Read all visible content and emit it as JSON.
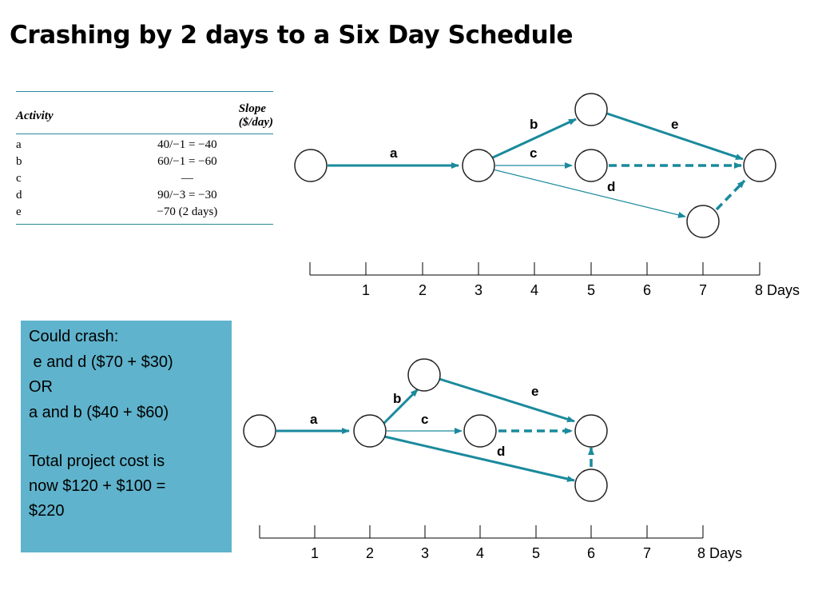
{
  "title": "Crashing by 2 days to a Six Day Schedule",
  "table": {
    "headers": {
      "activity": "Activity",
      "slope": "Slope ($/day)"
    },
    "rows": [
      {
        "activity": "a",
        "slope": "40/−1 = −40"
      },
      {
        "activity": "b",
        "slope": "60/−1 = −60"
      },
      {
        "activity": "c",
        "slope": "—"
      },
      {
        "activity": "d",
        "slope": "90/−3 = −30"
      },
      {
        "activity": "e",
        "slope": "−70 (2 days)"
      }
    ]
  },
  "crash_note": {
    "lines": [
      "Could crash:",
      " e and d ($70 + $30)",
      "OR",
      "a and b ($40 + $60)",
      "",
      "Total project cost is",
      "now $120 + $100 =",
      "$220"
    ]
  },
  "network_top": {
    "edges": {
      "a": "a",
      "b": "b",
      "c": "c",
      "d": "d",
      "e": "e"
    },
    "timeline": {
      "ticks": [
        "1",
        "2",
        "3",
        "4",
        "5",
        "6",
        "7",
        "8 Days"
      ]
    }
  },
  "network_bottom": {
    "edges": {
      "a": "a",
      "b": "b",
      "c": "c",
      "d": "d",
      "e": "e"
    },
    "timeline": {
      "ticks": [
        "1",
        "2",
        "3",
        "4",
        "5",
        "6",
        "7",
        "8 Days"
      ]
    }
  },
  "colors": {
    "arrow": "#1a8a9c",
    "note_bg": "#5fb3cc"
  }
}
